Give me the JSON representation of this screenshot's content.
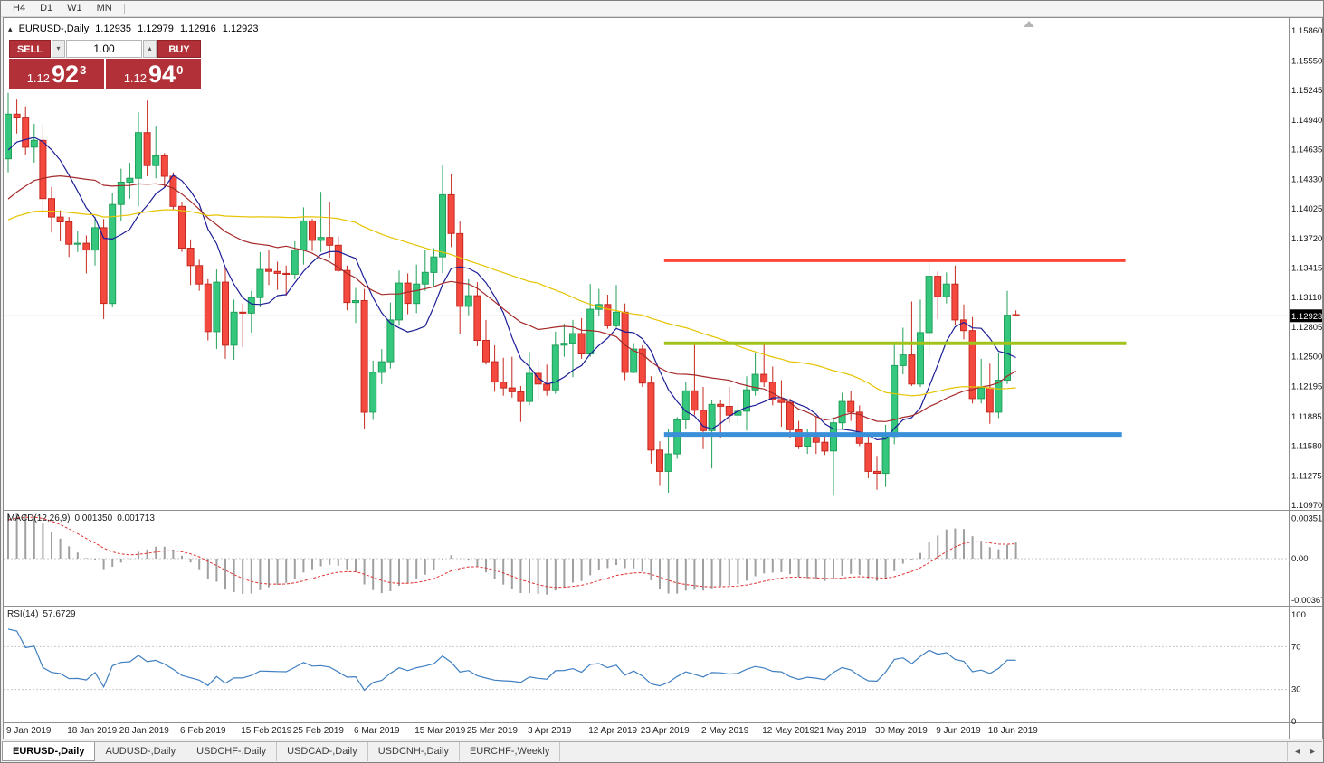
{
  "toolbar": {
    "timeframes": [
      {
        "label": "H4"
      },
      {
        "label": "D1"
      },
      {
        "label": "W1"
      },
      {
        "label": "MN"
      }
    ]
  },
  "icons": {
    "collapse": "▴",
    "step_up": "▴",
    "step_down": "▾",
    "tab_prev": "◂",
    "tab_next": "▸"
  },
  "chart_header": {
    "title": "EURUSD-,Daily",
    "open": "1.12935",
    "high": "1.12979",
    "low": "1.12916",
    "close": "1.12923"
  },
  "one_click": {
    "sell_label": "SELL",
    "buy_label": "BUY",
    "volume": "1.00",
    "sell_price": {
      "prefix": "1.12",
      "big": "92",
      "sup": "3"
    },
    "buy_price": {
      "prefix": "1.12",
      "big": "94",
      "sup": "0"
    }
  },
  "bottom_tabs": {
    "tabs": [
      {
        "label": "EURUSD-,Daily",
        "active": true
      },
      {
        "label": "AUDUSD-,Daily",
        "active": false
      },
      {
        "label": "USDCHF-,Daily",
        "active": false
      },
      {
        "label": "USDCAD-,Daily",
        "active": false
      },
      {
        "label": "USDCNH-,Daily",
        "active": false
      },
      {
        "label": "EURCHF-,Weekly",
        "active": false
      }
    ]
  },
  "chart_data": {
    "type": "candlestick",
    "symbol": "EURUSD-,Daily",
    "timeframe": "Daily",
    "last_price": 1.12923,
    "current_price_tag": "1.12923",
    "price_scale_labels": [
      "1.15860",
      "1.15550",
      "1.15245",
      "1.14940",
      "1.14635",
      "1.14330",
      "1.14025",
      "1.13720",
      "1.13415",
      "1.13110",
      "1.12805",
      "1.12500",
      "1.12195",
      "1.11885",
      "1.11580",
      "1.11275",
      "1.10970"
    ],
    "colors": {
      "up": "#35c77d",
      "up_stroke": "#21a05a",
      "down": "#f4493e",
      "down_stroke": "#c5281e",
      "ma_fast": "#1c1c96",
      "ma_mid": "#a52a2a",
      "ma_slow": "#e6c300",
      "macd_hist": "#a0a0a0",
      "macd_signal": "#e03030",
      "rsi": "#3f7fc1",
      "price_line": "#b0b0b0"
    },
    "moving_averages": [
      {
        "period": 8,
        "color": "#1c1c96"
      },
      {
        "period": 21,
        "color": "#a52a2a"
      },
      {
        "period": 50,
        "color": "#e6c300"
      }
    ],
    "hlines": [
      {
        "price": 1.1349,
        "i1": 75.5,
        "i2": 128.6,
        "color": "#ff4438",
        "width": 3
      },
      {
        "price": 1.1264,
        "i1": 75.5,
        "i2": 128.7,
        "color": "#a2c31c",
        "width": 4
      },
      {
        "price": 1.117,
        "i1": 75.5,
        "i2": 128.2,
        "color": "#3a8fd9",
        "width": 5
      }
    ],
    "pre_window_closes": [
      1.1302,
      1.131,
      1.1318,
      1.1308,
      1.1322,
      1.1335,
      1.1345,
      1.134,
      1.1352,
      1.1365,
      1.1358,
      1.1372,
      1.1385,
      1.1395,
      1.1388,
      1.1402,
      1.1415,
      1.1425,
      1.1418,
      1.1432,
      1.1445,
      1.1455,
      1.1448,
      1.1462,
      1.1475,
      1.1488
    ],
    "candles": [
      [
        1.1454,
        1.1522,
        1.144,
        1.15
      ],
      [
        1.15,
        1.1515,
        1.148,
        1.1497
      ],
      [
        1.1497,
        1.1508,
        1.1458,
        1.1466
      ],
      [
        1.1466,
        1.149,
        1.145,
        1.1473
      ],
      [
        1.1473,
        1.149,
        1.1397,
        1.1413
      ],
      [
        1.1413,
        1.1425,
        1.1378,
        1.1394
      ],
      [
        1.1394,
        1.1401,
        1.1369,
        1.1389
      ],
      [
        1.1389,
        1.1394,
        1.1353,
        1.1366
      ],
      [
        1.1366,
        1.138,
        1.1358,
        1.1367
      ],
      [
        1.1367,
        1.1375,
        1.1336,
        1.136
      ],
      [
        1.136,
        1.1394,
        1.1344,
        1.1383
      ],
      [
        1.1383,
        1.1392,
        1.1289,
        1.1305
      ],
      [
        1.1305,
        1.1419,
        1.1301,
        1.1407
      ],
      [
        1.1407,
        1.1444,
        1.139,
        1.143
      ],
      [
        1.143,
        1.145,
        1.1413,
        1.1434
      ],
      [
        1.1434,
        1.1502,
        1.1405,
        1.1481
      ],
      [
        1.1481,
        1.1514,
        1.1436,
        1.1447
      ],
      [
        1.1447,
        1.1488,
        1.1434,
        1.1457
      ],
      [
        1.1457,
        1.146,
        1.1425,
        1.1436
      ],
      [
        1.1436,
        1.144,
        1.1402,
        1.1405
      ],
      [
        1.1405,
        1.141,
        1.1358,
        1.1362
      ],
      [
        1.1362,
        1.1371,
        1.1324,
        1.1344
      ],
      [
        1.1344,
        1.135,
        1.1318,
        1.1325
      ],
      [
        1.1325,
        1.133,
        1.1267,
        1.1276
      ],
      [
        1.1276,
        1.134,
        1.1258,
        1.1327
      ],
      [
        1.1327,
        1.1341,
        1.1248,
        1.1262
      ],
      [
        1.1262,
        1.1309,
        1.1247,
        1.1296
      ],
      [
        1.1296,
        1.1305,
        1.126,
        1.1295
      ],
      [
        1.1295,
        1.1318,
        1.1275,
        1.1311
      ],
      [
        1.1311,
        1.1358,
        1.1301,
        1.134
      ],
      [
        1.134,
        1.136,
        1.1324,
        1.1338
      ],
      [
        1.1338,
        1.1348,
        1.1319,
        1.1336
      ],
      [
        1.1336,
        1.1344,
        1.1313,
        1.1335
      ],
      [
        1.1335,
        1.1369,
        1.133,
        1.136
      ],
      [
        1.136,
        1.1404,
        1.1345,
        1.139
      ],
      [
        1.139,
        1.1392,
        1.1359,
        1.137
      ],
      [
        1.137,
        1.142,
        1.1358,
        1.1373
      ],
      [
        1.1373,
        1.141,
        1.1352,
        1.1365
      ],
      [
        1.1365,
        1.1374,
        1.1337,
        1.1339
      ],
      [
        1.1339,
        1.1344,
        1.1298,
        1.1306
      ],
      [
        1.1306,
        1.1321,
        1.1285,
        1.1308
      ],
      [
        1.1308,
        1.132,
        1.1176,
        1.1193
      ],
      [
        1.1193,
        1.1246,
        1.1185,
        1.1234
      ],
      [
        1.1234,
        1.1258,
        1.1222,
        1.1245
      ],
      [
        1.1245,
        1.1306,
        1.1238,
        1.1288
      ],
      [
        1.1288,
        1.1339,
        1.1282,
        1.1326
      ],
      [
        1.1326,
        1.1336,
        1.1294,
        1.1305
      ],
      [
        1.1305,
        1.1345,
        1.1295,
        1.1325
      ],
      [
        1.1325,
        1.136,
        1.1318,
        1.1337
      ],
      [
        1.1337,
        1.1362,
        1.1322,
        1.1353
      ],
      [
        1.1353,
        1.1448,
        1.1336,
        1.1417
      ],
      [
        1.1417,
        1.1438,
        1.1363,
        1.1377
      ],
      [
        1.1377,
        1.139,
        1.1273,
        1.1302
      ],
      [
        1.1302,
        1.133,
        1.1293,
        1.1313
      ],
      [
        1.1313,
        1.1327,
        1.1261,
        1.1267
      ],
      [
        1.1267,
        1.1288,
        1.1242,
        1.1245
      ],
      [
        1.1245,
        1.1262,
        1.1214,
        1.1224
      ],
      [
        1.1224,
        1.1249,
        1.121,
        1.1218
      ],
      [
        1.1218,
        1.125,
        1.1208,
        1.1214
      ],
      [
        1.1214,
        1.122,
        1.1183,
        1.1204
      ],
      [
        1.1204,
        1.1255,
        1.12,
        1.1233
      ],
      [
        1.1233,
        1.1246,
        1.1206,
        1.1222
      ],
      [
        1.1222,
        1.1242,
        1.121,
        1.1216
      ],
      [
        1.1216,
        1.1276,
        1.1212,
        1.1262
      ],
      [
        1.1262,
        1.1284,
        1.125,
        1.1264
      ],
      [
        1.1264,
        1.1288,
        1.1229,
        1.1274
      ],
      [
        1.1274,
        1.129,
        1.1248,
        1.1253
      ],
      [
        1.1253,
        1.1325,
        1.125,
        1.1299
      ],
      [
        1.1299,
        1.132,
        1.1292,
        1.1304
      ],
      [
        1.1304,
        1.1314,
        1.1279,
        1.1282
      ],
      [
        1.1282,
        1.1324,
        1.128,
        1.1296
      ],
      [
        1.1296,
        1.1305,
        1.1226,
        1.1234
      ],
      [
        1.1234,
        1.1264,
        1.1233,
        1.1258
      ],
      [
        1.1258,
        1.1262,
        1.1219,
        1.1223
      ],
      [
        1.1223,
        1.123,
        1.114,
        1.1154
      ],
      [
        1.1154,
        1.1163,
        1.1117,
        1.1132
      ],
      [
        1.1132,
        1.1176,
        1.111,
        1.115
      ],
      [
        1.115,
        1.1188,
        1.1145,
        1.1185
      ],
      [
        1.1185,
        1.1224,
        1.1176,
        1.1215
      ],
      [
        1.1215,
        1.1265,
        1.119,
        1.1195
      ],
      [
        1.1195,
        1.1219,
        1.1155,
        1.1174
      ],
      [
        1.1174,
        1.1205,
        1.1135,
        1.1201
      ],
      [
        1.1201,
        1.1206,
        1.1166,
        1.1199
      ],
      [
        1.1199,
        1.1219,
        1.1182,
        1.119
      ],
      [
        1.119,
        1.1202,
        1.118,
        1.1194
      ],
      [
        1.1194,
        1.123,
        1.1174,
        1.1216
      ],
      [
        1.1216,
        1.1254,
        1.121,
        1.1232
      ],
      [
        1.1232,
        1.1264,
        1.1219,
        1.1224
      ],
      [
        1.1224,
        1.124,
        1.12,
        1.1206
      ],
      [
        1.1206,
        1.1226,
        1.1178,
        1.1203
      ],
      [
        1.1203,
        1.1207,
        1.1166,
        1.1175
      ],
      [
        1.1175,
        1.1184,
        1.1155,
        1.1158
      ],
      [
        1.1158,
        1.1176,
        1.115,
        1.1167
      ],
      [
        1.1167,
        1.1188,
        1.115,
        1.1162
      ],
      [
        1.1162,
        1.1172,
        1.1149,
        1.1153
      ],
      [
        1.1153,
        1.1188,
        1.1107,
        1.1182
      ],
      [
        1.1182,
        1.1213,
        1.1175,
        1.1204
      ],
      [
        1.1204,
        1.1215,
        1.1184,
        1.1193
      ],
      [
        1.1193,
        1.12,
        1.1158,
        1.1161
      ],
      [
        1.1161,
        1.1172,
        1.1125,
        1.1132
      ],
      [
        1.1132,
        1.1148,
        1.1113,
        1.113
      ],
      [
        1.113,
        1.118,
        1.1116,
        1.1168
      ],
      [
        1.1168,
        1.1263,
        1.116,
        1.1241
      ],
      [
        1.1241,
        1.128,
        1.1232,
        1.1252
      ],
      [
        1.1252,
        1.1307,
        1.122,
        1.1222
      ],
      [
        1.1222,
        1.1309,
        1.1219,
        1.1275
      ],
      [
        1.1275,
        1.1348,
        1.1251,
        1.1333
      ],
      [
        1.1333,
        1.1338,
        1.1289,
        1.1312
      ],
      [
        1.1312,
        1.1337,
        1.1305,
        1.1325
      ],
      [
        1.1325,
        1.1344,
        1.1283,
        1.1288
      ],
      [
        1.1288,
        1.1304,
        1.1268,
        1.1277
      ],
      [
        1.1277,
        1.1291,
        1.1202,
        1.1207
      ],
      [
        1.1207,
        1.1248,
        1.1202,
        1.1218
      ],
      [
        1.1218,
        1.1243,
        1.1181,
        1.1193
      ],
      [
        1.1193,
        1.1254,
        1.1187,
        1.1226
      ],
      [
        1.1226,
        1.1318,
        1.1222,
        1.1293
      ],
      [
        1.12935,
        1.12979,
        1.12916,
        1.12923
      ]
    ],
    "date_labels": [
      {
        "i": 0,
        "label": "9 Jan 2019"
      },
      {
        "i": 7,
        "label": "18 Jan 2019"
      },
      {
        "i": 13,
        "label": "28 Jan 2019"
      },
      {
        "i": 20,
        "label": "6 Feb 2019"
      },
      {
        "i": 27,
        "label": "15 Feb 2019"
      },
      {
        "i": 33,
        "label": "25 Feb 2019"
      },
      {
        "i": 40,
        "label": "6 Mar 2019"
      },
      {
        "i": 47,
        "label": "15 Mar 2019"
      },
      {
        "i": 53,
        "label": "25 Mar 2019"
      },
      {
        "i": 60,
        "label": "3 Apr 2019"
      },
      {
        "i": 67,
        "label": "12 Apr 2019"
      },
      {
        "i": 73,
        "label": "23 Apr 2019"
      },
      {
        "i": 80,
        "label": "2 May 2019"
      },
      {
        "i": 87,
        "label": "12 May 2019"
      },
      {
        "i": 93,
        "label": "21 May 2019"
      },
      {
        "i": 100,
        "label": "30 May 2019"
      },
      {
        "i": 107,
        "label": "9 Jun 2019"
      },
      {
        "i": 113,
        "label": "18 Jun 2019"
      }
    ],
    "macd": {
      "title": "MACD(12,26,9)",
      "value_main": "0.001350",
      "value_signal": "0.001713",
      "fast": 12,
      "slow": 26,
      "signal": 9,
      "scale_labels": [
        {
          "value": 0.003518,
          "label": "0.003518"
        },
        {
          "value": 0,
          "label": "0.00"
        },
        {
          "value": -0.00367,
          "label": "-0.00367"
        }
      ]
    },
    "rsi": {
      "title": "RSI(14)",
      "value": "57.6729",
      "period": 14,
      "levels": [
        70,
        30
      ],
      "scale_labels": [
        {
          "value": 100,
          "label": "100"
        },
        {
          "value": 70,
          "label": "70"
        },
        {
          "value": 30,
          "label": "30"
        },
        {
          "value": 0,
          "label": "0"
        }
      ]
    },
    "shift_marker_i": 117.5
  }
}
